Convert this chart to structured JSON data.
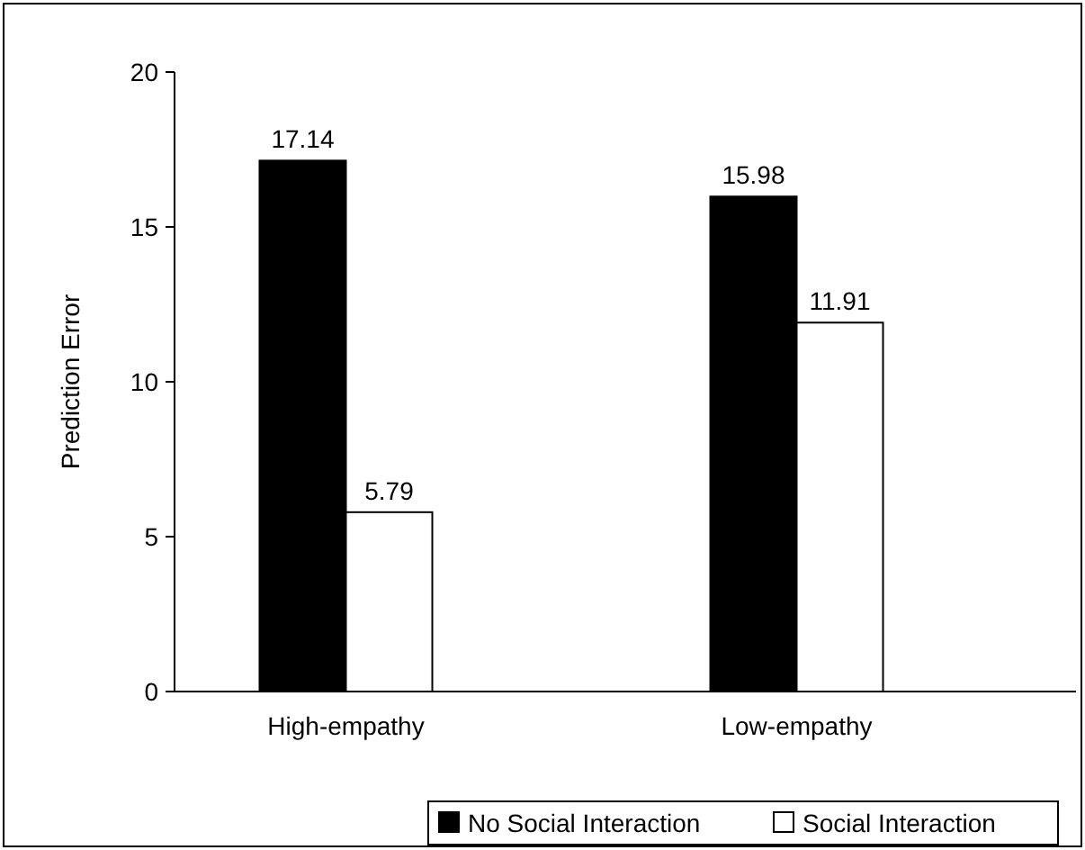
{
  "chart_data": {
    "type": "bar",
    "ylabel": "Prediction Error",
    "categories": [
      "High-empathy",
      "Low-empathy"
    ],
    "series": [
      {
        "name": "No Social Interaction",
        "color": "#000000",
        "values": [
          17.14,
          15.98
        ]
      },
      {
        "name": "Social Interaction",
        "color": "#ffffff",
        "values": [
          5.79,
          11.91
        ]
      }
    ],
    "ylim": [
      0,
      20
    ],
    "yticks": [
      0,
      5,
      10,
      15,
      20
    ],
    "data_labels": true,
    "legend": "bottom",
    "grid": false
  }
}
